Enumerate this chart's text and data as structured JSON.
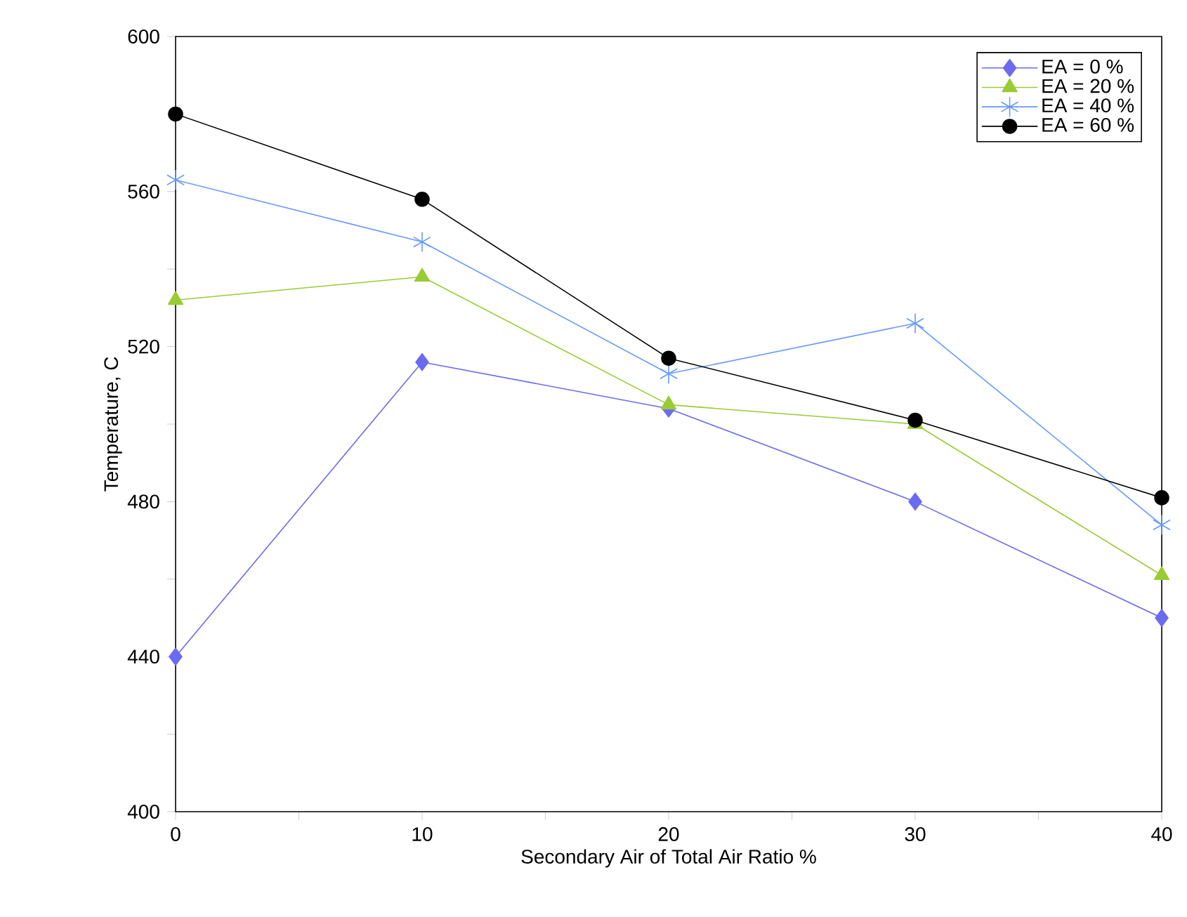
{
  "chart_data": {
    "type": "line",
    "xlabel": "Secondary Air of Total Air Ratio %",
    "ylabel": "Temperature, C",
    "x": [
      0,
      10,
      20,
      30,
      40
    ],
    "series": [
      {
        "name": "EA = 0 %",
        "color": "#6b6bf0",
        "marker": "diamond",
        "values": [
          440,
          516,
          504,
          480,
          450
        ]
      },
      {
        "name": "EA = 20 %",
        "color": "#99cc33",
        "marker": "triangle",
        "values": [
          532,
          538,
          505,
          500,
          461
        ]
      },
      {
        "name": "EA = 40 %",
        "color": "#6699ff",
        "marker": "cross",
        "values": [
          563,
          547,
          513,
          526,
          474
        ]
      },
      {
        "name": "EA = 60 %",
        "color": "#000000",
        "marker": "circle",
        "values": [
          580,
          558,
          517,
          501,
          481
        ]
      }
    ],
    "xlim": [
      0,
      40
    ],
    "ylim": [
      400,
      600
    ],
    "xticks": [
      0,
      {
        "value": 5,
        "label": null
      },
      10,
      {
        "value": 15,
        "label": null
      },
      20,
      {
        "value": 25,
        "label": null
      },
      30,
      {
        "value": 35,
        "label": null
      },
      40
    ],
    "yticks": [
      400,
      {
        "value": 420,
        "label": null
      },
      440,
      {
        "value": 460,
        "label": null
      },
      480,
      {
        "value": 500,
        "label": null
      },
      520,
      {
        "value": 540,
        "label": null
      },
      560,
      {
        "value": 580,
        "label": null
      },
      600
    ],
    "grid": false,
    "legend": "top right",
    "line_style": "solid"
  }
}
